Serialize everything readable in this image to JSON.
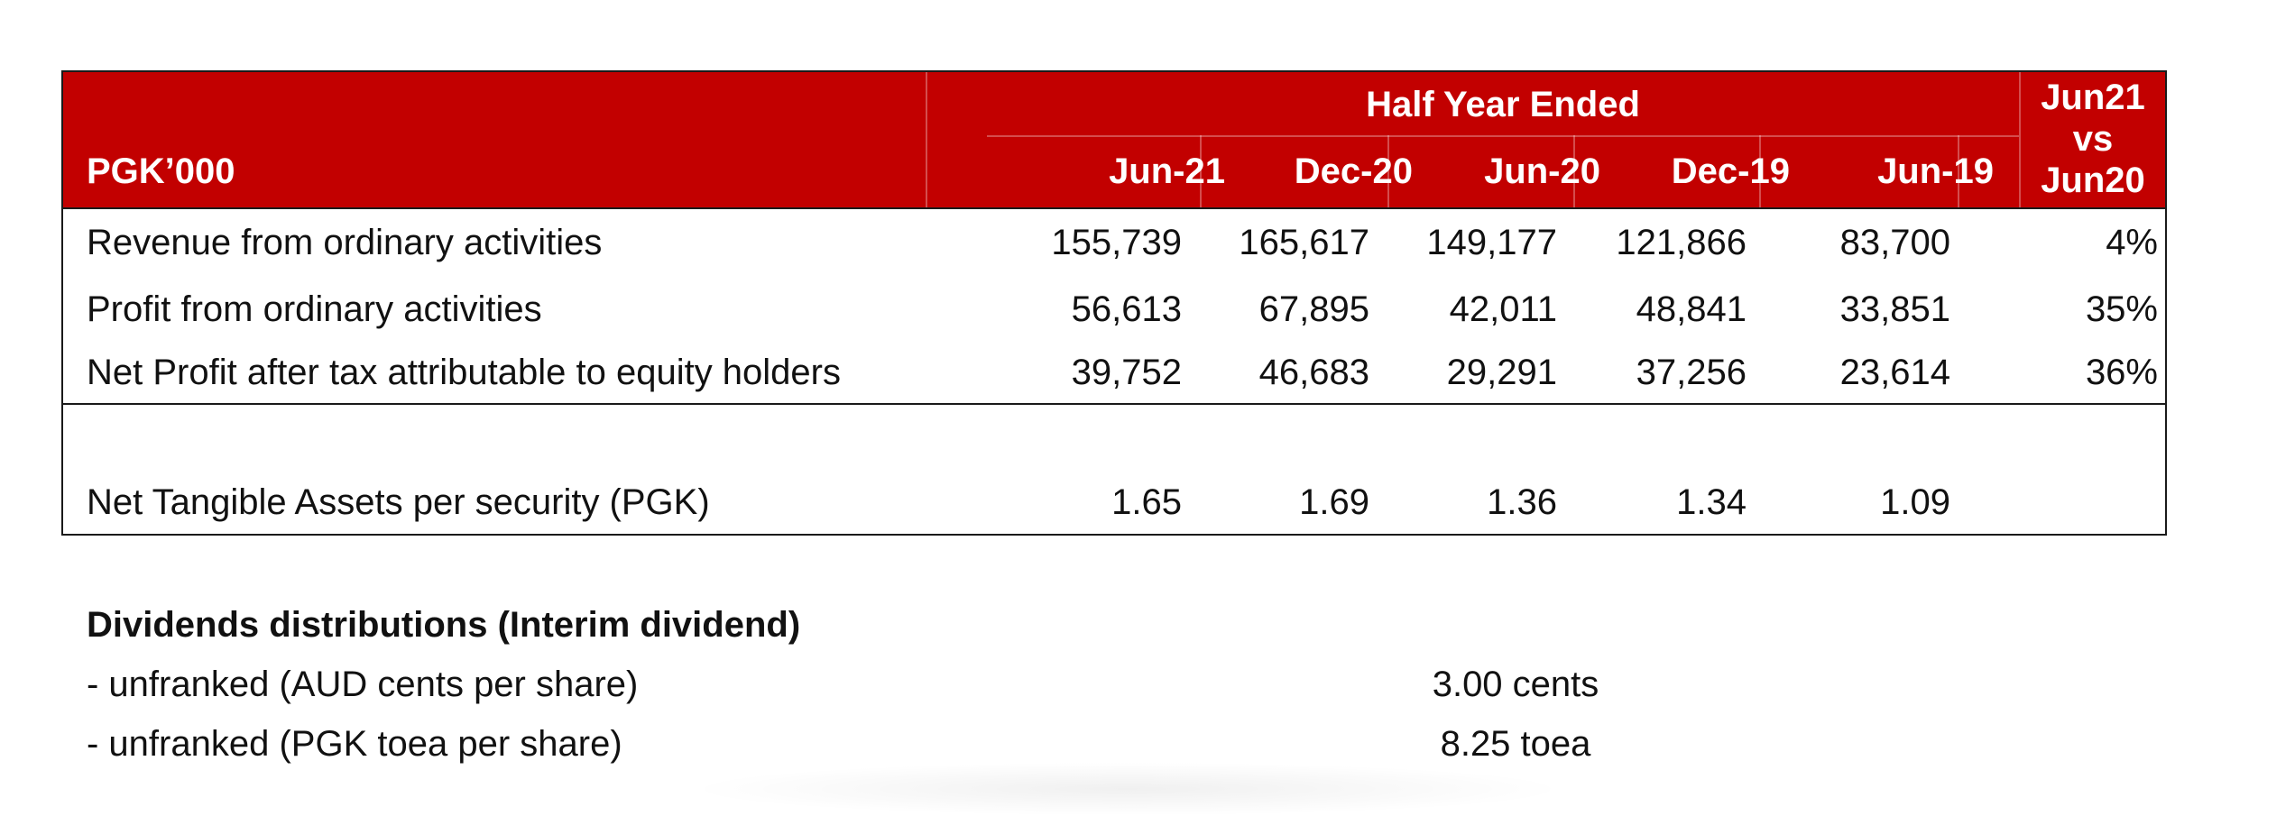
{
  "table": {
    "group_header": "Half Year Ended",
    "unit_label": "PGK’000",
    "columns": [
      "Jun-21",
      "Dec-20",
      "Jun-20",
      "Dec-19",
      "Jun-19"
    ],
    "comparison_header": [
      "Jun21",
      "vs",
      "Jun20"
    ],
    "rows": [
      {
        "label": "Revenue from ordinary activities",
        "values": [
          "155,739",
          "165,617",
          "149,177",
          "121,866",
          "83,700"
        ],
        "change": "4%"
      },
      {
        "label": "Profit from ordinary activities",
        "values": [
          "56,613",
          "67,895",
          "42,011",
          "48,841",
          "33,851"
        ],
        "change": "35%"
      },
      {
        "label": "Net Profit after tax attributable to equity holders",
        "values": [
          "39,752",
          "46,683",
          "29,291",
          "37,256",
          "23,614"
        ],
        "change": "36%"
      }
    ],
    "nta_row": {
      "label": "Net Tangible Assets per security (PGK)",
      "values": [
        "1.65",
        "1.69",
        "1.36",
        "1.34",
        "1.09"
      ]
    }
  },
  "dividends": {
    "title": "Dividends distributions (Interim dividend)",
    "items": [
      {
        "label": "- unfranked (AUD cents per share)",
        "value": "3.00 cents"
      },
      {
        "label": "- unfranked (PGK toea per share)",
        "value": "8.25 toea"
      }
    ]
  },
  "colors": {
    "header_background": "#c20000",
    "header_text": "#ffffff",
    "body_text": "#111111"
  }
}
